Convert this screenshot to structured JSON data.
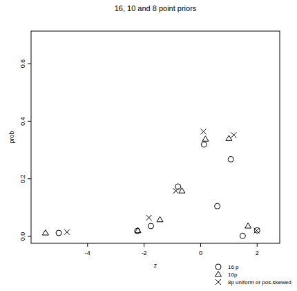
{
  "chart_data": {
    "type": "scatter",
    "title": "16, 10 and 8 point priors",
    "x_label": "z",
    "y_label": "prob",
    "xlim": [
      -6,
      2.8
    ],
    "ylim": [
      -0.024,
      0.713
    ],
    "xticks": [
      -4,
      -2,
      0,
      2
    ],
    "yticks": [
      {
        "value": 0,
        "label": "0.0"
      },
      0.2,
      0.4,
      0.6
    ],
    "grid": false,
    "legend": "bottom-right",
    "series": [
      {
        "name": "16 p",
        "color": "#000000",
        "marker": "circle",
        "x": [
          -5.02,
          -2.24,
          -1.76,
          -0.8,
          0.12,
          0.59,
          1.07,
          1.49,
          2.0
        ],
        "values": [
          0.012,
          0.019,
          0.036,
          0.173,
          0.319,
          0.105,
          0.268,
          0.002,
          0.021
        ]
      },
      {
        "name": "10p",
        "color": "#000000",
        "marker": "triangle",
        "x": [
          -5.49,
          -2.22,
          -1.44,
          -0.66,
          0.17,
          1.0,
          1.68
        ],
        "values": [
          0.012,
          0.02,
          0.058,
          0.158,
          0.338,
          0.34,
          0.036
        ]
      },
      {
        "name": "8p uniform or pos.skewed",
        "color": "#000000",
        "marker": "cross",
        "x": [
          -4.73,
          -1.83,
          -0.88,
          0.1,
          1.17,
          1.98
        ],
        "values": [
          0.015,
          0.065,
          0.158,
          0.364,
          0.352,
          0.02
        ]
      }
    ]
  }
}
